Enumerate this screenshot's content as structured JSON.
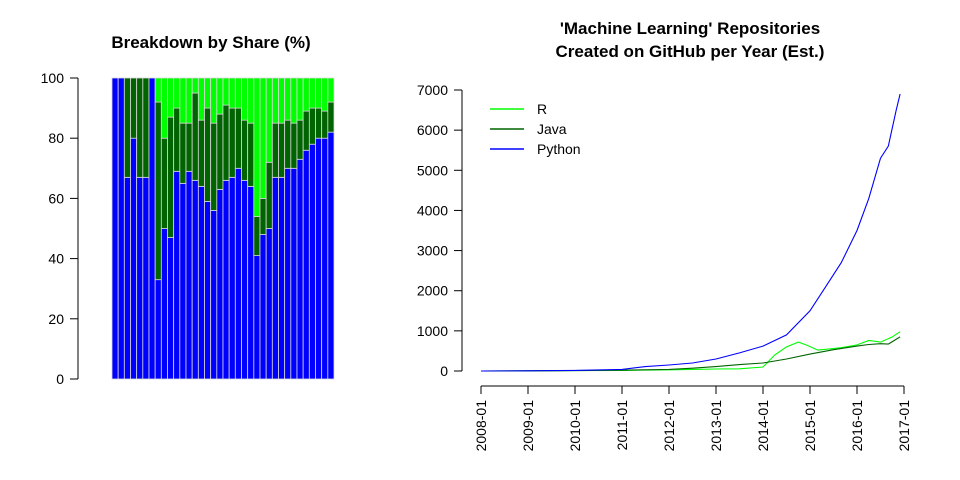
{
  "chart_data": [
    {
      "type": "bar",
      "stacked": true,
      "title": "Breakdown by Share (%)",
      "ylim": [
        0,
        100
      ],
      "yticks": [
        "0",
        "20",
        "40",
        "60",
        "80",
        "100"
      ],
      "series": [
        {
          "name": "Python",
          "color": "#0000ff",
          "values": [
            100,
            100,
            67,
            80,
            67,
            67,
            100,
            33,
            50,
            47,
            69,
            65,
            69,
            66,
            64,
            59,
            56,
            63,
            66,
            67,
            70,
            66,
            64,
            41,
            48,
            50,
            67,
            67,
            70,
            70,
            73,
            76,
            78,
            80,
            80,
            82
          ]
        },
        {
          "name": "Java",
          "color": "#006400",
          "values": [
            0,
            0,
            33,
            20,
            33,
            33,
            0,
            59,
            30,
            40,
            21,
            20,
            16,
            29,
            22,
            31,
            29,
            25,
            25,
            23,
            20,
            20,
            21,
            13,
            12,
            22,
            18,
            18,
            16,
            15,
            13,
            13,
            12,
            10,
            9,
            10
          ]
        },
        {
          "name": "R",
          "color": "#00ff00",
          "values": [
            0,
            0,
            0,
            0,
            0,
            0,
            0,
            8,
            20,
            13,
            10,
            15,
            15,
            5,
            14,
            10,
            15,
            12,
            9,
            10,
            10,
            14,
            15,
            46,
            40,
            28,
            15,
            15,
            14,
            15,
            14,
            11,
            10,
            10,
            11,
            8
          ]
        }
      ]
    },
    {
      "type": "line",
      "title": [
        "'Machine Learning' Repositories",
        "Created on GitHub per Year (Est.)"
      ],
      "ylim": [
        0,
        7000
      ],
      "yticks": [
        "0",
        "1000",
        "2000",
        "3000",
        "4000",
        "5000",
        "6000",
        "7000"
      ],
      "xlim": [
        "2008-01",
        "2017-01"
      ],
      "xticks": [
        "2008-01",
        "2009-01",
        "2010-01",
        "2011-01",
        "2012-01",
        "2013-01",
        "2014-01",
        "2015-01",
        "2016-01",
        "2017-01"
      ],
      "legend_position": "top-left",
      "series": [
        {
          "name": "R",
          "color": "#00ff00",
          "points": [
            [
              "2008-01",
              0
            ],
            [
              "2009-01",
              5
            ],
            [
              "2010-01",
              10
            ],
            [
              "2011-01",
              15
            ],
            [
              "2012-01",
              30
            ],
            [
              "2012-07",
              40
            ],
            [
              "2013-01",
              50
            ],
            [
              "2013-07",
              55
            ],
            [
              "2014-01",
              100
            ],
            [
              "2014-04",
              400
            ],
            [
              "2014-07",
              600
            ],
            [
              "2014-10",
              720
            ],
            [
              "2014-12",
              650
            ],
            [
              "2015-03",
              520
            ],
            [
              "2015-06",
              550
            ],
            [
              "2015-09",
              580
            ],
            [
              "2016-01",
              650
            ],
            [
              "2016-04",
              760
            ],
            [
              "2016-07",
              720
            ],
            [
              "2016-10",
              850
            ],
            [
              "2016-12",
              980
            ]
          ]
        },
        {
          "name": "Java",
          "color": "#006400",
          "points": [
            [
              "2008-01",
              0
            ],
            [
              "2009-01",
              5
            ],
            [
              "2010-01",
              10
            ],
            [
              "2011-01",
              20
            ],
            [
              "2012-01",
              40
            ],
            [
              "2012-07",
              70
            ],
            [
              "2013-01",
              110
            ],
            [
              "2013-07",
              160
            ],
            [
              "2014-01",
              200
            ],
            [
              "2014-07",
              300
            ],
            [
              "2015-01",
              420
            ],
            [
              "2015-07",
              530
            ],
            [
              "2016-01",
              620
            ],
            [
              "2016-04",
              660
            ],
            [
              "2016-07",
              680
            ],
            [
              "2016-09",
              670
            ],
            [
              "2016-12",
              850
            ]
          ]
        },
        {
          "name": "Python",
          "color": "#0000ff",
          "points": [
            [
              "2008-01",
              0
            ],
            [
              "2009-01",
              5
            ],
            [
              "2010-01",
              15
            ],
            [
              "2011-01",
              40
            ],
            [
              "2011-07",
              110
            ],
            [
              "2012-01",
              150
            ],
            [
              "2012-07",
              200
            ],
            [
              "2013-01",
              300
            ],
            [
              "2013-07",
              450
            ],
            [
              "2014-01",
              620
            ],
            [
              "2014-07",
              900
            ],
            [
              "2015-01",
              1500
            ],
            [
              "2015-05",
              2100
            ],
            [
              "2015-09",
              2700
            ],
            [
              "2016-01",
              3500
            ],
            [
              "2016-04",
              4300
            ],
            [
              "2016-07",
              5300
            ],
            [
              "2016-09",
              5600
            ],
            [
              "2016-11",
              6500
            ],
            [
              "2016-12",
              6900
            ]
          ]
        }
      ]
    }
  ]
}
